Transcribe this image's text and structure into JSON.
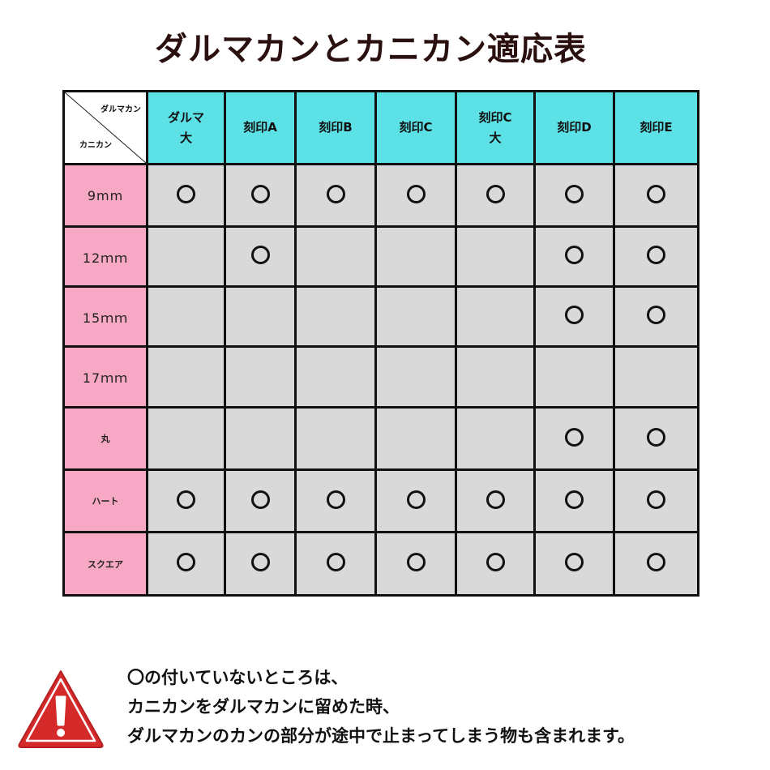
{
  "title": "ダルマカンとカニカン適応表",
  "table": {
    "corner_top": "ダルマカン",
    "corner_bottom": "カニカン",
    "columns": [
      "ダルマ\n大",
      "刻印A",
      "刻印B",
      "刻印C",
      "刻印C\n大",
      "刻印D",
      "刻印E"
    ],
    "rows": [
      {
        "label": "9mm",
        "marks": [
          true,
          true,
          true,
          true,
          true,
          true,
          true
        ]
      },
      {
        "label": "12ｍｍ",
        "marks": [
          false,
          true,
          false,
          false,
          false,
          true,
          true
        ]
      },
      {
        "label": "15ｍｍ",
        "marks": [
          false,
          false,
          false,
          false,
          false,
          true,
          true
        ]
      },
      {
        "label": "17ｍｍ",
        "marks": [
          false,
          false,
          false,
          false,
          false,
          false,
          false
        ]
      },
      {
        "label": "丸",
        "marks": [
          false,
          false,
          false,
          false,
          false,
          true,
          true
        ]
      },
      {
        "label": "ハート",
        "marks": [
          true,
          true,
          true,
          true,
          true,
          true,
          true
        ]
      },
      {
        "label": "スクエア",
        "marks": [
          true,
          true,
          true,
          true,
          true,
          true,
          true
        ]
      }
    ]
  },
  "note": {
    "icon": "warning-triangle-icon",
    "lines": [
      "〇の付いていないところは、",
      "カニカンをダルマカンに留めた時、",
      "ダルマカンのカンの部分が途中で止まってしまう物も含まれます。"
    ]
  },
  "colors": {
    "header": "#5ce1e6",
    "row_header": "#f7a8c4",
    "cell": "#d9d9d9",
    "warning": "#d42a2a"
  }
}
